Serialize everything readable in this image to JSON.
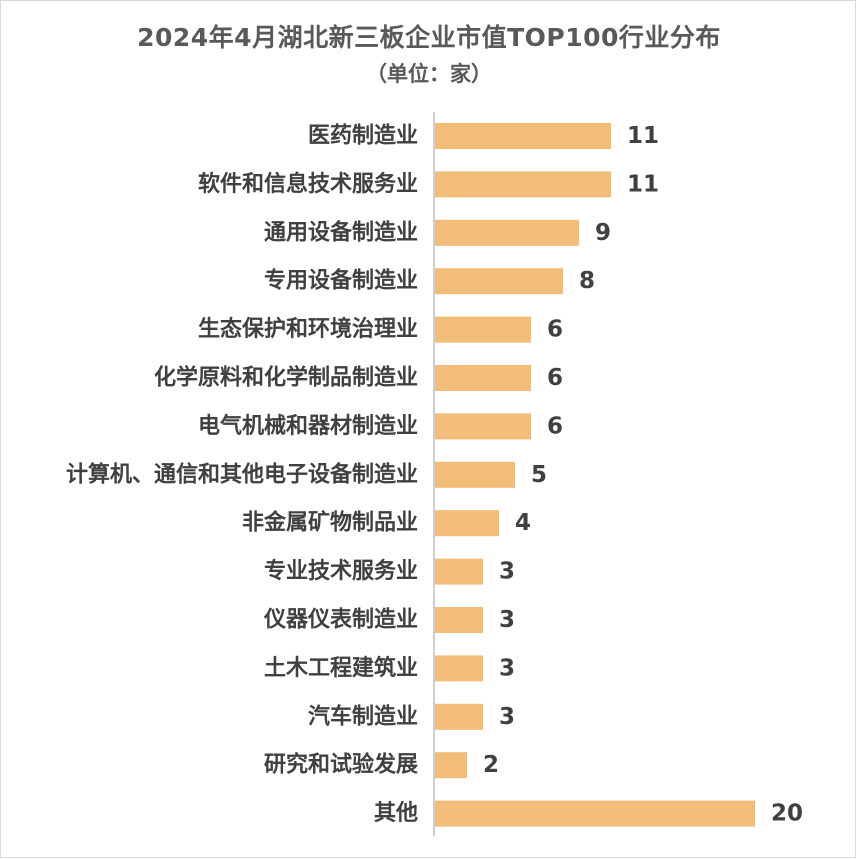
{
  "chart_data": {
    "type": "bar",
    "orientation": "horizontal",
    "title": "2024年4月湖北新三板企业市值TOP100行业分布",
    "subtitle": "（单位：家）",
    "categories": [
      "医药制造业",
      "软件和信息技术服务业",
      "通用设备制造业",
      "专用设备制造业",
      "生态保护和环境治理业",
      "化学原料和化学制品制造业",
      "电气机械和器材制造业",
      "计算机、通信和其他电子设备制造业",
      "非金属矿物制品业",
      "专业技术服务业",
      "仪器仪表制造业",
      "土木工程建筑业",
      "汽车制造业",
      "研究和试验发展",
      "其他"
    ],
    "values": [
      11,
      11,
      9,
      8,
      6,
      6,
      6,
      5,
      4,
      3,
      3,
      3,
      3,
      2,
      20
    ],
    "xlim": [
      0,
      20
    ],
    "grid": false,
    "legend": "none",
    "colors": {
      "bar": "#F1BD78",
      "axis": "#BFBFBF",
      "text": "#404040"
    }
  }
}
